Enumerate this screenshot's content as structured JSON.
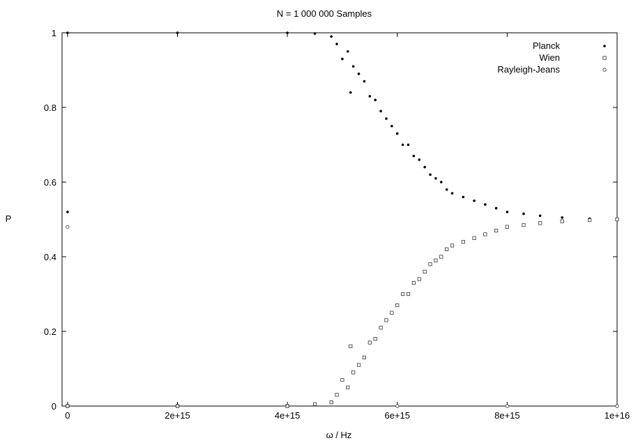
{
  "chart_data": {
    "type": "scatter",
    "title": "N = 1 000 000 Samples",
    "xlabel": "ω / Hz",
    "ylabel": "P",
    "xlim": [
      -100000000000000.0,
      1e+16
    ],
    "ylim": [
      0,
      1
    ],
    "x_ticks": [
      {
        "value": 0,
        "label": "0"
      },
      {
        "value": 2000000000000000.0,
        "label": "2e+15"
      },
      {
        "value": 4000000000000000.0,
        "label": "4e+15"
      },
      {
        "value": 6000000000000000.0,
        "label": "6e+15"
      },
      {
        "value": 8000000000000000.0,
        "label": "8e+15"
      },
      {
        "value": 1e+16,
        "label": "1e+16"
      }
    ],
    "y_ticks": [
      {
        "value": 0,
        "label": "0"
      },
      {
        "value": 0.2,
        "label": "0.2"
      },
      {
        "value": 0.4,
        "label": "0.4"
      },
      {
        "value": 0.6,
        "label": "0.6"
      },
      {
        "value": 0.8,
        "label": "0.8"
      },
      {
        "value": 1,
        "label": "1"
      }
    ],
    "grid": false,
    "legend_position": "top-right",
    "series": [
      {
        "name": "Planck",
        "marker": "filled-dot",
        "x": [
          0,
          0,
          2000000000000000.0,
          4000000000000000.0,
          4500000000000000.0,
          4800000000000000.0,
          4900000000000000.0,
          5000000000000000.0,
          5100000000000000.0,
          5150000000000000.0,
          5200000000000000.0,
          5300000000000000.0,
          5400000000000000.0,
          5500000000000000.0,
          5600000000000000.0,
          5700000000000000.0,
          5800000000000000.0,
          5900000000000000.0,
          6000000000000000.0,
          6100000000000000.0,
          6200000000000000.0,
          6300000000000000.0,
          6400000000000000.0,
          6500000000000000.0,
          6600000000000000.0,
          6700000000000000.0,
          6800000000000000.0,
          6900000000000000.0,
          7000000000000000.0,
          7200000000000000.0,
          7400000000000000.0,
          7600000000000000.0,
          7800000000000000.0,
          8000000000000000.0,
          8300000000000000.0,
          8600000000000000.0,
          9000000000000000.0,
          9500000000000000.0,
          1e+16
        ],
        "y": [
          1.0,
          0.52,
          1.0,
          1.0,
          0.998,
          0.99,
          0.97,
          0.93,
          0.95,
          0.84,
          0.91,
          0.89,
          0.87,
          0.83,
          0.82,
          0.79,
          0.77,
          0.75,
          0.73,
          0.7,
          0.7,
          0.67,
          0.66,
          0.64,
          0.62,
          0.61,
          0.6,
          0.58,
          0.57,
          0.56,
          0.55,
          0.54,
          0.53,
          0.52,
          0.515,
          0.51,
          0.505,
          0.502,
          0.5
        ]
      },
      {
        "name": "Wien",
        "marker": "open-square",
        "x": [
          0,
          2000000000000000.0,
          4000000000000000.0,
          4500000000000000.0,
          4800000000000000.0,
          4900000000000000.0,
          5000000000000000.0,
          5100000000000000.0,
          5150000000000000.0,
          5200000000000000.0,
          5300000000000000.0,
          5400000000000000.0,
          5500000000000000.0,
          5600000000000000.0,
          5700000000000000.0,
          5800000000000000.0,
          5900000000000000.0,
          6000000000000000.0,
          6100000000000000.0,
          6200000000000000.0,
          6300000000000000.0,
          6400000000000000.0,
          6500000000000000.0,
          6600000000000000.0,
          6700000000000000.0,
          6800000000000000.0,
          6900000000000000.0,
          7000000000000000.0,
          7200000000000000.0,
          7400000000000000.0,
          7600000000000000.0,
          7800000000000000.0,
          8000000000000000.0,
          8300000000000000.0,
          8600000000000000.0,
          9000000000000000.0,
          9500000000000000.0,
          1e+16
        ],
        "y": [
          0.0,
          0.0,
          0.0,
          0.005,
          0.01,
          0.03,
          0.07,
          0.05,
          0.16,
          0.09,
          0.11,
          0.13,
          0.17,
          0.18,
          0.21,
          0.23,
          0.25,
          0.27,
          0.3,
          0.3,
          0.33,
          0.34,
          0.36,
          0.38,
          0.39,
          0.4,
          0.42,
          0.43,
          0.44,
          0.45,
          0.46,
          0.47,
          0.48,
          0.485,
          0.49,
          0.495,
          0.498,
          0.5
        ]
      },
      {
        "name": "Rayleigh-Jeans",
        "marker": "open-circle",
        "x": [
          0,
          0,
          2000000000000000.0,
          4000000000000000.0,
          6000000000000000.0,
          8000000000000000.0,
          1e+16
        ],
        "y": [
          0.48,
          0.0,
          0.0,
          0.0,
          0.0,
          0.0,
          0.0
        ]
      }
    ]
  }
}
